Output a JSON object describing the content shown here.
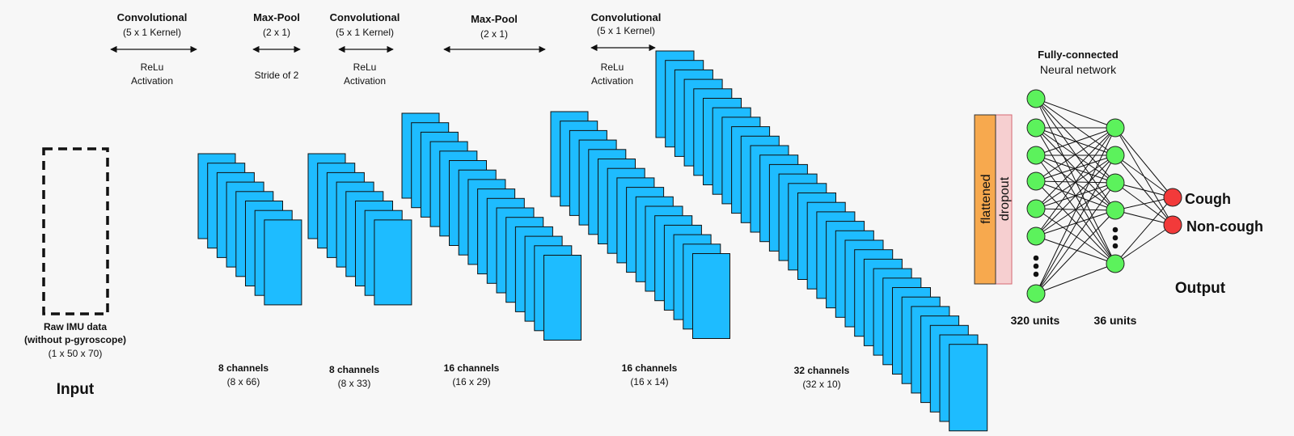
{
  "colors": {
    "background": "#f7f7f7",
    "feature_map_fill": "#1ebcff",
    "feature_map_stroke": "#111111",
    "flatten_fill": "#f7a94e",
    "dropout_fill": "#f6cfd0",
    "dropout_stroke": "#d66a73",
    "neuron_fill": "#5cf25c",
    "output_fill": "#f23a3a"
  },
  "input": {
    "title_line1": "Raw IMU data",
    "title_line2": "(without p-gyroscope)",
    "dims": "(1 x 50 x 70)",
    "section_label": "Input"
  },
  "operations": [
    {
      "title": "Convolutional",
      "sub": "(5 x 1 Kernel)",
      "note1": "ReLu",
      "note2": "Activation"
    },
    {
      "title": "Max-Pool",
      "sub": "(2 x 1)",
      "note1": "Stride of 2",
      "note2": ""
    },
    {
      "title": "Convolutional",
      "sub": "(5 x 1 Kernel)",
      "note1": "ReLu",
      "note2": "Activation"
    },
    {
      "title": "Max-Pool",
      "sub": "(2 x 1)",
      "note1": "",
      "note2": ""
    },
    {
      "title": "Convolutional",
      "sub": "(5 x 1 Kernel)",
      "note1": "ReLu",
      "note2": "Activation"
    }
  ],
  "feature_maps": [
    {
      "channels_label": "8 channels",
      "dims": "(8 x 66)",
      "count": 8
    },
    {
      "channels_label": "8 channels",
      "dims": "(8 x 33)",
      "count": 8
    },
    {
      "channels_label": "16 channels",
      "dims": "(16 x 29)",
      "count": 16
    },
    {
      "channels_label": "16 channels",
      "dims": "(16 x 14)",
      "count": 16
    },
    {
      "channels_label": "32 channels",
      "dims": "(32 x 10)",
      "count": 32
    }
  ],
  "flatten": {
    "flattened_label": "flattened",
    "dropout_label": "dropout"
  },
  "dense": {
    "title_line1": "Fully-connected",
    "title_line2": "Neural network",
    "layer1_units": "320 units",
    "layer2_units": "36 units"
  },
  "output": {
    "class1": "Cough",
    "class2": "Non-cough",
    "section_label": "Output"
  }
}
